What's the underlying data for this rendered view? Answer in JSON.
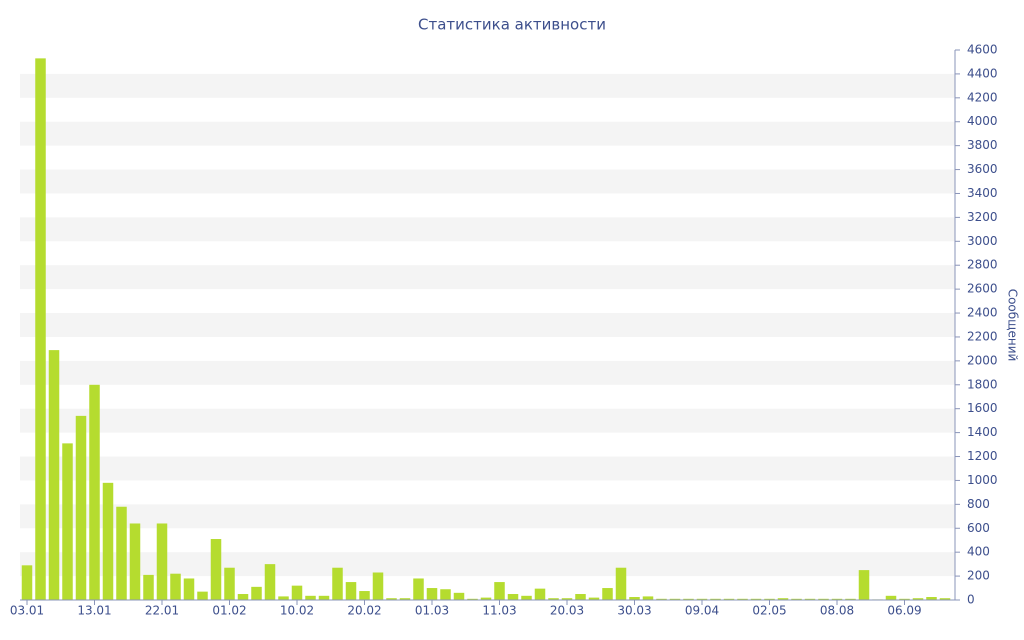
{
  "chart_data": {
    "type": "bar",
    "title": "Статистика активности",
    "y_axis_label": "Сообщений",
    "categories": [
      "03.01",
      null,
      null,
      null,
      null,
      "13.01",
      null,
      null,
      null,
      null,
      "22.01",
      null,
      null,
      null,
      null,
      "01.02",
      null,
      null,
      null,
      null,
      "10.02",
      null,
      null,
      null,
      null,
      "20.02",
      null,
      null,
      null,
      null,
      "01.03",
      null,
      null,
      null,
      null,
      "11.03",
      null,
      null,
      null,
      null,
      "20.03",
      null,
      null,
      null,
      null,
      "30.03",
      null,
      null,
      null,
      null,
      "09.04",
      null,
      null,
      null,
      null,
      "02.05",
      null,
      null,
      null,
      null,
      "08.08",
      null,
      null,
      null,
      null,
      "06.09",
      null,
      null,
      null
    ],
    "values": [
      290,
      4530,
      2090,
      1310,
      1540,
      1800,
      980,
      780,
      640,
      210,
      640,
      220,
      180,
      70,
      510,
      270,
      50,
      110,
      300,
      30,
      120,
      35,
      35,
      270,
      150,
      75,
      230,
      15,
      15,
      180,
      100,
      90,
      60,
      10,
      20,
      150,
      50,
      35,
      95,
      15,
      15,
      50,
      20,
      100,
      270,
      25,
      30,
      10,
      10,
      10,
      10,
      10,
      10,
      10,
      10,
      10,
      15,
      10,
      10,
      10,
      10,
      10,
      250,
      5,
      35,
      10,
      15,
      25,
      15
    ],
    "color": "#b5dc2f",
    "ylim": [
      0,
      4600
    ],
    "yticks": [
      0,
      200,
      400,
      600,
      800,
      1000,
      1200,
      1400,
      1600,
      1800,
      2000,
      2200,
      2400,
      2600,
      2800,
      3000,
      3200,
      3400,
      3600,
      3800,
      4000,
      4200,
      4400,
      4600
    ],
    "grid": "bands"
  }
}
